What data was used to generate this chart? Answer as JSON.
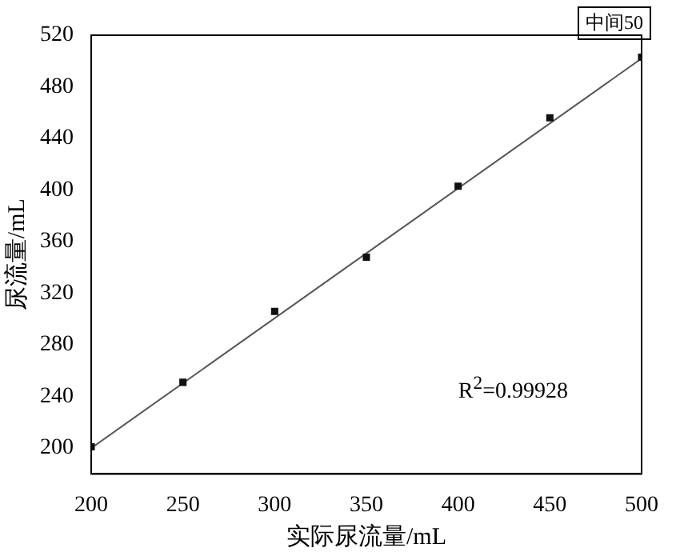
{
  "chart_data": {
    "type": "scatter",
    "xlabel": "实际尿流量/mL",
    "ylabel": "尿流量/mL",
    "x": [
      200,
      250,
      300,
      350,
      400,
      450,
      500
    ],
    "series": [
      {
        "color": "#111111",
        "marker": "square",
        "values": [
          201,
          251,
          306,
          348,
          403,
          456,
          503
        ]
      },
      {
        "type": "line",
        "color": "#555555",
        "marker": "none",
        "x": [
          200,
          500
        ],
        "values": [
          200,
          502
        ]
      }
    ],
    "xlim": [
      200,
      500
    ],
    "xticks": [
      200,
      250,
      300,
      350,
      400,
      450,
      500
    ],
    "ylim": [
      180,
      520
    ],
    "yticks": [
      200,
      240,
      280,
      320,
      360,
      400,
      440,
      480,
      520
    ],
    "grid": false,
    "legend": false,
    "annotations": [
      "中间50",
      "R$^{2}$=0.99928"
    ]
  }
}
